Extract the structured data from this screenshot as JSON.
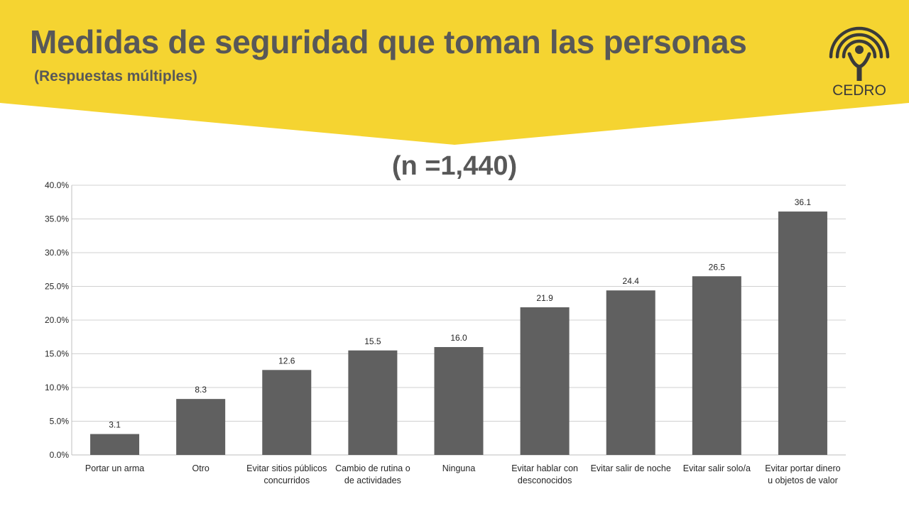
{
  "header": {
    "title": "Medidas de seguridad que toman las personas",
    "subtitle": "(Respuestas múltiples)",
    "logo_text": "CEDRO",
    "accent_color": "#F5D431"
  },
  "chart_data": {
    "type": "bar",
    "title": "(n =1,440)",
    "categories": [
      [
        "Portar un arma"
      ],
      [
        "Otro"
      ],
      [
        "Evitar sitios públicos",
        "concurridos"
      ],
      [
        "Cambio de rutina o",
        "de actividades"
      ],
      [
        "Ninguna"
      ],
      [
        "Evitar hablar con",
        "desconocidos"
      ],
      [
        "Evitar salir de noche"
      ],
      [
        "Evitar salir solo/a"
      ],
      [
        "Evitar portar dinero",
        "u objetos de valor"
      ]
    ],
    "values": [
      3.1,
      8.3,
      12.6,
      15.5,
      16.0,
      21.9,
      24.4,
      26.5,
      36.1
    ],
    "value_labels": [
      "3.1",
      "8.3",
      "12.6",
      "15.5",
      "16.0",
      "21.9",
      "24.4",
      "26.5",
      "36.1"
    ],
    "ylim": [
      0,
      40
    ],
    "yticks": [
      "0.0%",
      "5.0%",
      "10.0%",
      "15.0%",
      "20.0%",
      "25.0%",
      "30.0%",
      "35.0%",
      "40.0%"
    ],
    "xlabel": "",
    "ylabel": "",
    "grid": true,
    "bar_color": "#606060"
  }
}
